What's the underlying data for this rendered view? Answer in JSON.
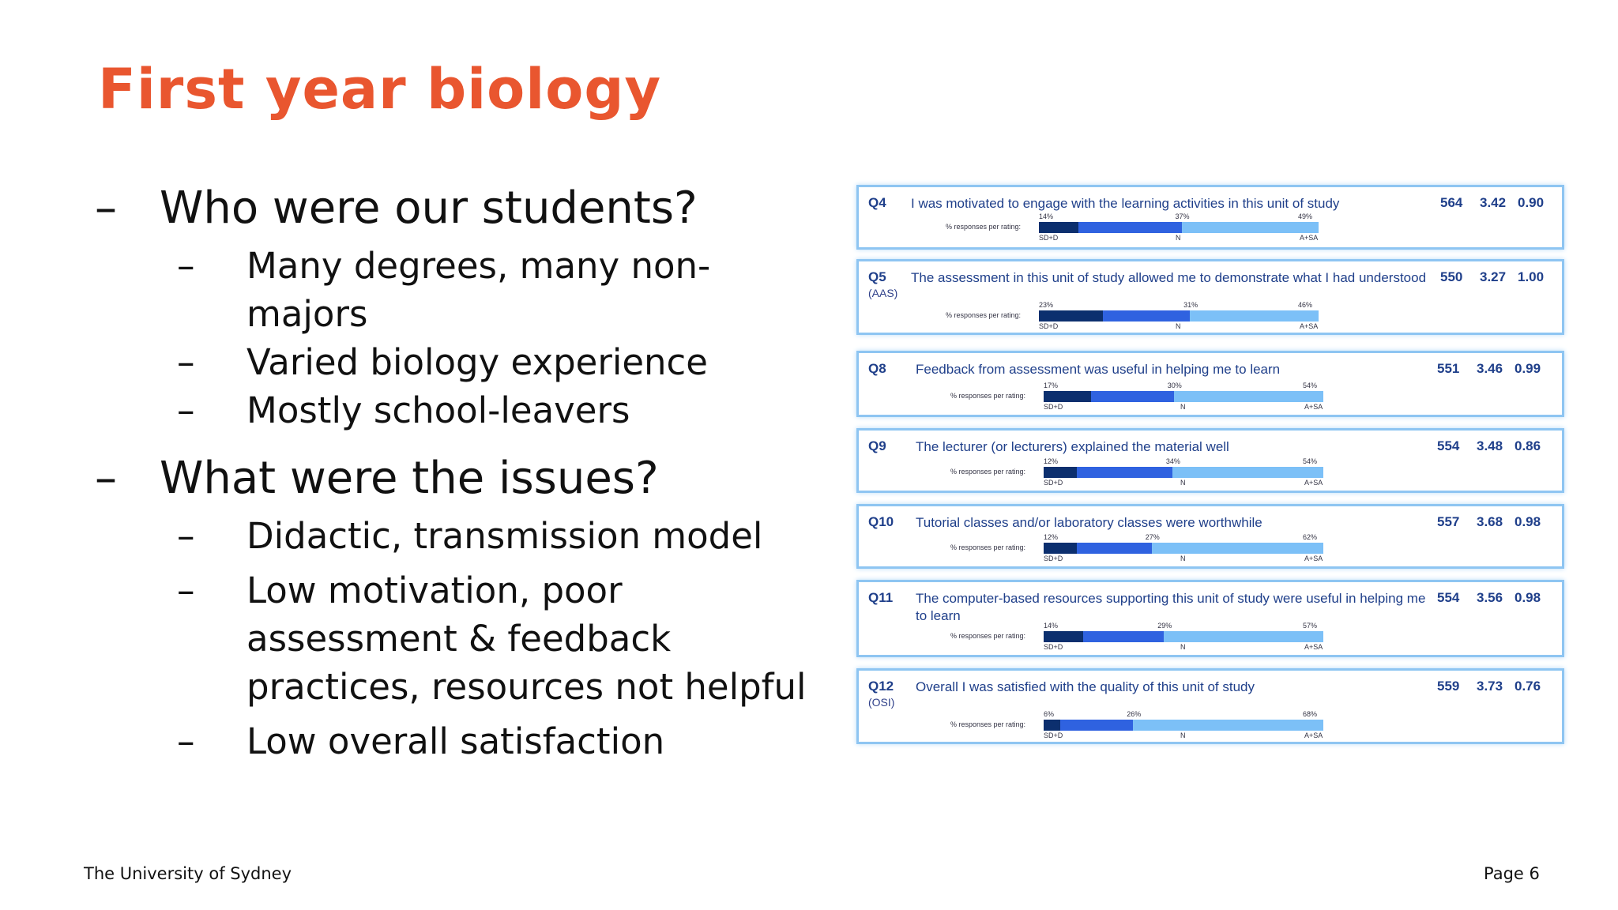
{
  "slide": {
    "title": "First year biology",
    "bullets": [
      {
        "text": "Who were our students?",
        "sub": [
          "Many degrees, many non-majors",
          "Varied biology experience",
          "Mostly school-leavers"
        ]
      },
      {
        "text": "What were the issues?",
        "sub": [
          "Didactic, transmission model",
          "Low motivation, poor assessment & feedback practices, resources not helpful",
          "Low overall satisfaction"
        ]
      }
    ],
    "dash": "–",
    "footer_left": "The University of Sydney",
    "footer_right": "Page 6"
  },
  "chart_data": {
    "type": "bar",
    "stacked": true,
    "orientation": "horizontal",
    "rating_label": "% responses per rating:",
    "axis_labels": [
      "SD+D",
      "N",
      "A+SA"
    ],
    "colors": {
      "SD+D": "#0c2f6e",
      "N": "#2f62e0",
      "A+SA": "#7cc0f7"
    },
    "questions": [
      {
        "id": "Q4",
        "sub": "",
        "text": "I was motivated to engage with the learning activities in this unit of study",
        "n": "564",
        "mean": "3.42",
        "sd": "0.90",
        "values": [
          14,
          37,
          49
        ]
      },
      {
        "id": "Q5",
        "sub": "(AAS)",
        "text": "The assessment in this unit of study allowed me to demonstrate what I had understood",
        "n": "550",
        "mean": "3.27",
        "sd": "1.00",
        "values": [
          23,
          31,
          46
        ]
      },
      {
        "id": "Q8",
        "sub": "",
        "text": "Feedback from assessment was useful in helping me to learn",
        "n": "551",
        "mean": "3.46",
        "sd": "0.99",
        "values": [
          17,
          30,
          54
        ]
      },
      {
        "id": "Q9",
        "sub": "",
        "text": "The lecturer (or lecturers) explained the material well",
        "n": "554",
        "mean": "3.48",
        "sd": "0.86",
        "values": [
          12,
          34,
          54
        ]
      },
      {
        "id": "Q10",
        "sub": "",
        "text": "Tutorial classes and/or laboratory classes were worthwhile",
        "n": "557",
        "mean": "3.68",
        "sd": "0.98",
        "values": [
          12,
          27,
          62
        ]
      },
      {
        "id": "Q11",
        "sub": "",
        "text": "The computer-based resources supporting this unit of study were useful in helping me to learn",
        "n": "554",
        "mean": "3.56",
        "sd": "0.98",
        "values": [
          14,
          29,
          57
        ]
      },
      {
        "id": "Q12",
        "sub": "(OSI)",
        "text": "Overall I was satisfied with the quality of this unit of study",
        "n": "559",
        "mean": "3.73",
        "sd": "0.76",
        "values": [
          6,
          26,
          68
        ]
      }
    ]
  }
}
